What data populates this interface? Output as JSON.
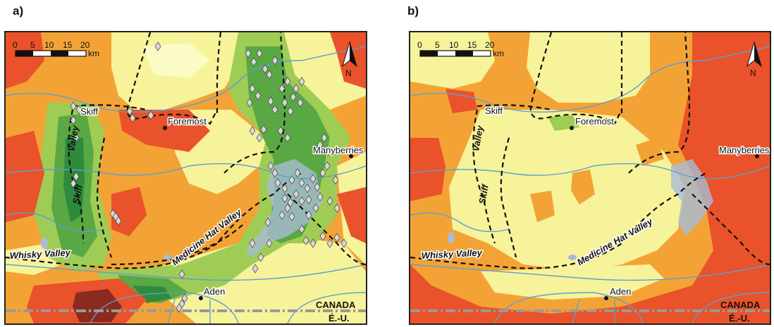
{
  "panels": [
    {
      "label": "a)",
      "scalebar": {
        "ticks": [
          "0",
          "5",
          "10",
          "15",
          "20"
        ],
        "unit": "km"
      },
      "north": "N",
      "places": {
        "skiff": "Skiff",
        "foremost": "Foremost",
        "manyberries": "Manyberries",
        "aden": "Aden"
      },
      "valleys": {
        "skiff_1": "Valley",
        "skiff_2": "Skiff",
        "whisky": "Whisky Valley",
        "medicine_hat": "Medicine Hat Valley"
      },
      "border": {
        "north": "CANADA",
        "south": "É.-U."
      }
    },
    {
      "label": "b)",
      "scalebar": {
        "ticks": [
          "0",
          "5",
          "10",
          "15",
          "20"
        ],
        "unit": "km"
      },
      "north": "N",
      "places": {
        "skiff": "Skiff",
        "foremost": "Foremost",
        "manyberries": "Manyberries",
        "aden": "Aden"
      },
      "valleys": {
        "skiff_1": "Valley",
        "skiff_2": "Skiff",
        "whisky": "Whisky Valley",
        "medicine_hat": "Medicine Hat Valley"
      },
      "border": {
        "north": "CANADA",
        "south": "É.-U."
      }
    }
  ],
  "colors": {
    "dark_red": "#8b2a1f",
    "red": "#e9522a",
    "orange": "#f3a335",
    "light_yellow": "#f6f39a",
    "pale_yellow": "#fbfbc6",
    "light_green": "#9fcc55",
    "green": "#5aa844",
    "dark_green": "#2f8a3c",
    "rivers": "#5d9fd0",
    "lakes": "#a8bcd6",
    "marker": "#d8d8d8"
  }
}
